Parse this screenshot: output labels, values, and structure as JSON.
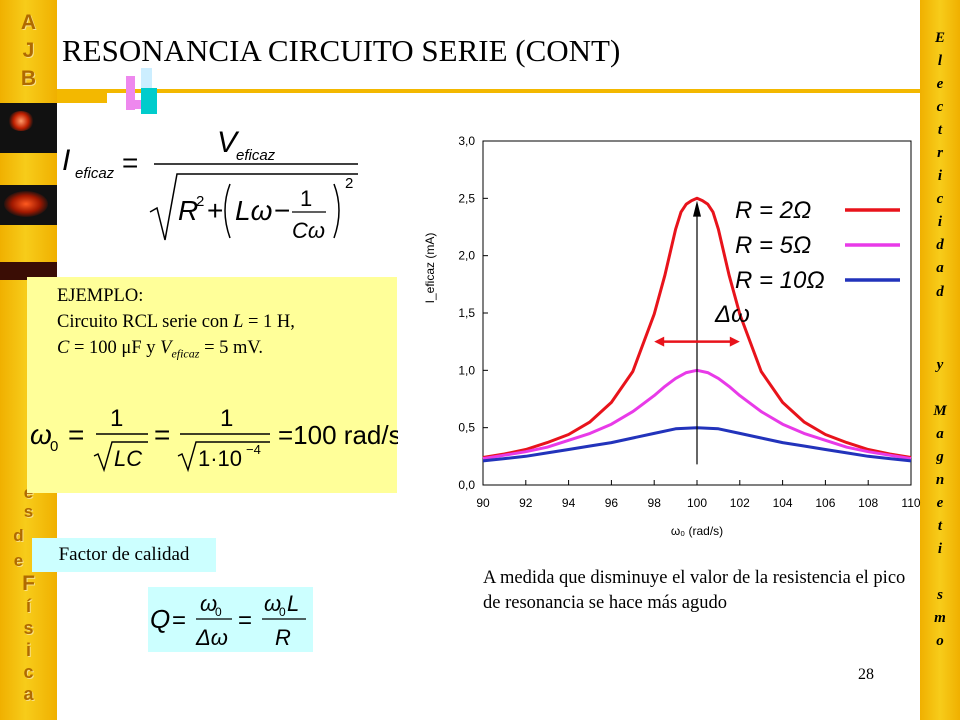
{
  "slide": {
    "title": "RESONANCIA CIRCUITO SERIE (CONT)",
    "page_number": "28"
  },
  "sidebar_left": {
    "letters": [
      "A",
      "J",
      "B",
      "e",
      "s",
      "d",
      "e",
      "F",
      "í",
      "s",
      "i",
      "c",
      "a"
    ]
  },
  "sidebar_right": {
    "letters": [
      "E",
      "l",
      "e",
      "c",
      "t",
      "r",
      "i",
      "c",
      "i",
      "d",
      "a",
      "d",
      "y",
      "M",
      "a",
      "g",
      "n",
      "e",
      "t",
      "i",
      "s",
      "m",
      "o"
    ]
  },
  "formula_current": {
    "lhs_symbol": "I",
    "lhs_sub": "eficaz",
    "numerator_symbol": "V",
    "numerator_sub": "eficaz",
    "exp": "2",
    "one": "1"
  },
  "example": {
    "heading": "EJEMPLO:",
    "line1_prefix": "Circuito RCL serie con ",
    "L_symbol": "L",
    "L_value": " = 1 H,",
    "C_symbol": "C",
    "C_value": " = 100 ",
    "mu": "μ",
    "C_unit_rest": "F  y ",
    "V_symbol": "V",
    "V_sub": "eficaz",
    "V_value": " = 5 mV."
  },
  "formula_omega": {
    "omega0": "ω",
    "sub0": "0",
    "one": "1",
    "LC": "LC",
    "radicand": "1·10",
    "exponent": "−4",
    "result": "=100 rad/s"
  },
  "quality": {
    "label": "Factor de calidad",
    "Q": "Q",
    "omega0": "ω",
    "sub0": "0",
    "delta_omega": "Δω",
    "L": "L",
    "R": "R"
  },
  "caption": "A medida que disminuye el valor de la resistencia el pico de resonancia se hace más agudo",
  "chart_data": {
    "type": "line",
    "xlabel": "ω₀ (rad/s)",
    "ylabel": "I_eficaz (mA)",
    "xlim": [
      90,
      110
    ],
    "ylim": [
      0,
      3.0
    ],
    "x_ticks": [
      "90",
      "92",
      "94",
      "96",
      "98",
      "100",
      "102",
      "104",
      "106",
      "108",
      "110"
    ],
    "y_ticks": [
      "0,0",
      "0,5",
      "1,0",
      "1,5",
      "2,0",
      "2,5",
      "3,0"
    ],
    "grid": false,
    "legend_position": "top-right",
    "annotation": "Δω",
    "series": [
      {
        "name": "R = 2Ω",
        "color": "#e8131b",
        "R": 2,
        "x": [
          90,
          91,
          92,
          93,
          94,
          95,
          96,
          97,
          98,
          98.5,
          99,
          99.25,
          99.5,
          99.75,
          100,
          100.25,
          100.5,
          100.75,
          101,
          101.5,
          102,
          103,
          104,
          105,
          106,
          107,
          108,
          109,
          110
        ],
        "y": [
          0.24,
          0.27,
          0.31,
          0.37,
          0.44,
          0.55,
          0.72,
          0.99,
          1.49,
          1.83,
          2.23,
          2.38,
          2.45,
          2.48,
          2.5,
          2.48,
          2.45,
          2.38,
          2.23,
          1.83,
          1.49,
          0.99,
          0.72,
          0.55,
          0.44,
          0.37,
          0.31,
          0.27,
          0.24
        ]
      },
      {
        "name": "R = 5Ω",
        "color": "#e83ae8",
        "R": 5,
        "x": [
          90,
          91,
          92,
          93,
          94,
          95,
          96,
          97,
          98,
          98.5,
          99,
          99.5,
          100,
          100.5,
          101,
          101.5,
          102,
          103,
          104,
          105,
          106,
          107,
          108,
          109,
          110
        ],
        "y": [
          0.23,
          0.26,
          0.29,
          0.33,
          0.39,
          0.45,
          0.53,
          0.64,
          0.78,
          0.86,
          0.93,
          0.98,
          1.0,
          0.98,
          0.93,
          0.86,
          0.78,
          0.64,
          0.53,
          0.45,
          0.39,
          0.33,
          0.29,
          0.26,
          0.23
        ]
      },
      {
        "name": "R = 10Ω",
        "color": "#2233bb",
        "R": 10,
        "x": [
          90,
          91,
          92,
          93,
          94,
          95,
          96,
          97,
          98,
          99,
          100,
          101,
          102,
          103,
          104,
          105,
          106,
          107,
          108,
          109,
          110
        ],
        "y": [
          0.21,
          0.23,
          0.25,
          0.28,
          0.31,
          0.34,
          0.37,
          0.41,
          0.45,
          0.49,
          0.5,
          0.49,
          0.45,
          0.41,
          0.37,
          0.34,
          0.31,
          0.28,
          0.25,
          0.23,
          0.21
        ]
      }
    ]
  }
}
